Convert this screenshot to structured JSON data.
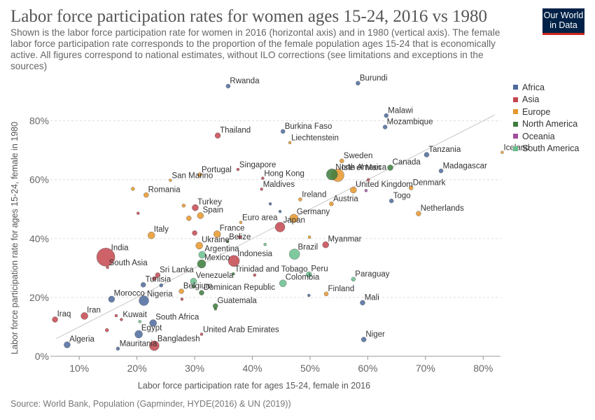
{
  "header": {
    "title": "Labor force participation rates for women ages 15-24, 2016 vs 1980",
    "subtitle": "Shown is the labor force participation rate for women in 2016 (horizontal axis) and in 1980 (vertical axis). The female labor force participation rate corresponds to the proportion of the female population ages 15-24 that is economically active. All figures correspond to national estimates, without ILO corrections (see limitations and exceptions in the sources)",
    "logo_line1": "Our World",
    "logo_line2": "in Data"
  },
  "footer": {
    "source": "Source: World Bank, Population (Gapminder, HYDE(2016) & UN (2019))"
  },
  "colors": {
    "Africa": "#4c6a9c",
    "Asia": "#c4474f",
    "Europe": "#e8962a",
    "North America": "#3c7d3c",
    "Oceania": "#a24d9e",
    "South America": "#67c08c"
  },
  "chart_data": {
    "type": "scatter",
    "xlabel": "Labor force participation rate for ages 15-24, female in 2016",
    "ylabel": "Labor force participation rate for ages 15-24, female in 1980",
    "xlim": [
      5,
      83
    ],
    "ylim": [
      0,
      93
    ],
    "xticks": [
      10,
      20,
      30,
      40,
      50,
      60,
      70,
      80
    ],
    "yticks": [
      0,
      20,
      40,
      60,
      80
    ],
    "tick_suffix": "%",
    "grid": "horizontal",
    "legend_position": "right",
    "legend": [
      "Africa",
      "Asia",
      "Europe",
      "North America",
      "Oceania",
      "South America"
    ],
    "reference_line": [
      [
        6,
        6
      ],
      [
        82,
        82
      ]
    ],
    "points": [
      {
        "label": "Rwanda",
        "region": "Africa",
        "x": 35.8,
        "y": 91.8,
        "size": 3
      },
      {
        "label": "Burundi",
        "region": "Africa",
        "x": 58.3,
        "y": 92.8,
        "size": 3
      },
      {
        "label": "Malawi",
        "region": "Africa",
        "x": 63.2,
        "y": 81.8,
        "size": 3
      },
      {
        "label": "Mozambique",
        "region": "Africa",
        "x": 63.0,
        "y": 77.9,
        "size": 3
      },
      {
        "label": "Thailand",
        "region": "Asia",
        "x": 34.0,
        "y": 75.0,
        "size": 4
      },
      {
        "label": "Burkina Faso",
        "region": "Africa",
        "x": 45.3,
        "y": 76.4,
        "size": 3
      },
      {
        "label": "Liechtenstein",
        "region": "Europe",
        "x": 46.5,
        "y": 72.6,
        "size": 2
      },
      {
        "label": "Tanzania",
        "region": "Africa",
        "x": 70.2,
        "y": 68.5,
        "size": 3.5
      },
      {
        "label": "Iceland",
        "region": "Europe",
        "x": 83.3,
        "y": 69.3,
        "size": 2
      },
      {
        "label": "Sweden",
        "region": "Europe",
        "x": 55.5,
        "y": 66.4,
        "size": 3
      },
      {
        "label": "North America",
        "region": "North America",
        "x": 53.8,
        "y": 61.8,
        "size": 8
      },
      {
        "label": "Isle of Man",
        "region": "Europe",
        "x": 54.8,
        "y": 61.5,
        "size": 9
      },
      {
        "label": "Canada",
        "region": "North America",
        "x": 63.9,
        "y": 64.1,
        "size": 4
      },
      {
        "label": "Madagascar",
        "region": "Africa",
        "x": 72.7,
        "y": 63.0,
        "size": 3
      },
      {
        "label": "Portugal",
        "region": "Europe",
        "x": 30.9,
        "y": 61.7,
        "size": 3
      },
      {
        "label": "Singapore",
        "region": "Asia",
        "x": 37.5,
        "y": 63.5,
        "size": 2
      },
      {
        "label": "Hong Kong",
        "region": "Asia",
        "x": 41.8,
        "y": 60.5,
        "size": 2
      },
      {
        "label": "San Marino",
        "region": "Europe",
        "x": 25.8,
        "y": 59.8,
        "size": 2
      },
      {
        "label": "Maldives",
        "region": "Asia",
        "x": 41.6,
        "y": 56.8,
        "size": 2
      },
      {
        "label": "Romania",
        "region": "Europe",
        "x": 21.6,
        "y": 54.8,
        "size": 3.5
      },
      {
        "label": "United Kingdom",
        "region": "Europe",
        "x": 57.5,
        "y": 56.5,
        "size": 4.5
      },
      {
        "label": "Denmark",
        "region": "Europe",
        "x": 67.5,
        "y": 57.2,
        "size": 3
      },
      {
        "label": "Ireland",
        "region": "Europe",
        "x": 48.3,
        "y": 53.3,
        "size": 2.5
      },
      {
        "label": "Austria",
        "region": "Europe",
        "x": 53.7,
        "y": 51.8,
        "size": 3
      },
      {
        "label": "Togo",
        "region": "Africa",
        "x": 64.1,
        "y": 52.8,
        "size": 3
      },
      {
        "label": "Turkey",
        "region": "Asia",
        "x": 30.1,
        "y": 50.5,
        "size": 4.5
      },
      {
        "label": "Spain",
        "region": "Europe",
        "x": 31.0,
        "y": 47.8,
        "size": 4.5
      },
      {
        "label": "Germany",
        "region": "Europe",
        "x": 47.2,
        "y": 46.9,
        "size": 6
      },
      {
        "label": "Netherlands",
        "region": "Europe",
        "x": 68.8,
        "y": 48.5,
        "size": 3.5
      },
      {
        "label": "Euro area",
        "region": "Europe",
        "x": 38.0,
        "y": 45.5,
        "size": 2
      },
      {
        "label": "Japan",
        "region": "Asia",
        "x": 44.8,
        "y": 43.9,
        "size": 7
      },
      {
        "label": "France",
        "region": "Europe",
        "x": 33.9,
        "y": 41.5,
        "size": 5
      },
      {
        "label": "Italy",
        "region": "Europe",
        "x": 22.5,
        "y": 41.1,
        "size": 5
      },
      {
        "label": "Belize",
        "region": "North America",
        "x": 35.7,
        "y": 39.0,
        "size": 2
      },
      {
        "label": "Ukraine",
        "region": "Europe",
        "x": 30.8,
        "y": 37.6,
        "size": 5
      },
      {
        "label": "Argentina",
        "region": "South America",
        "x": 31.3,
        "y": 34.5,
        "size": 5
      },
      {
        "label": "Myanmar",
        "region": "Asia",
        "x": 52.7,
        "y": 37.9,
        "size": 4.5
      },
      {
        "label": "Brazil",
        "region": "South America",
        "x": 47.3,
        "y": 34.7,
        "size": 7.5
      },
      {
        "label": "India",
        "region": "Asia",
        "x": 14.6,
        "y": 33.7,
        "size": 13
      },
      {
        "label": "Indonesia",
        "region": "Asia",
        "x": 36.8,
        "y": 32.4,
        "size": 8
      },
      {
        "label": "Mexico",
        "region": "North America",
        "x": 31.2,
        "y": 31.4,
        "size": 6
      },
      {
        "label": "South Asia",
        "region": "Asia",
        "x": 14.9,
        "y": 30.2,
        "size": 2
      },
      {
        "label": "Sri Lanka",
        "region": "Asia",
        "x": 23.6,
        "y": 27.6,
        "size": 3.5
      },
      {
        "label": "Trinidad and Tobago",
        "region": "North America",
        "x": 36.7,
        "y": 28.0,
        "size": 2
      },
      {
        "label": "Peru",
        "region": "South America",
        "x": 49.8,
        "y": 27.8,
        "size": 4
      },
      {
        "label": "Paraguay",
        "region": "South America",
        "x": 57.5,
        "y": 26.2,
        "size": 3
      },
      {
        "label": "Venezuela",
        "region": "South America",
        "x": 29.8,
        "y": 25.5,
        "size": 4.5
      },
      {
        "label": "Colombia",
        "region": "South America",
        "x": 45.3,
        "y": 24.8,
        "size": 5
      },
      {
        "label": "Tunisia",
        "region": "Africa",
        "x": 21.1,
        "y": 24.3,
        "size": 3.5
      },
      {
        "label": "Belgium",
        "region": "Europe",
        "x": 27.7,
        "y": 22.1,
        "size": 3.5
      },
      {
        "label": "Dominican Republic",
        "region": "North America",
        "x": 31.2,
        "y": 21.6,
        "size": 3.5
      },
      {
        "label": "Finland",
        "region": "Europe",
        "x": 52.8,
        "y": 21.2,
        "size": 3
      },
      {
        "label": "Morocco",
        "region": "Africa",
        "x": 15.6,
        "y": 19.4,
        "size": 4.5
      },
      {
        "label": "Nigeria",
        "region": "Africa",
        "x": 21.2,
        "y": 18.9,
        "size": 7
      },
      {
        "label": "Guatemala",
        "region": "North America",
        "x": 33.6,
        "y": 17.1,
        "size": 3.5
      },
      {
        "label": "Mali",
        "region": "Africa",
        "x": 59.1,
        "y": 18.2,
        "size": 3.5
      },
      {
        "label": "Iraq",
        "region": "Asia",
        "x": 5.8,
        "y": 12.5,
        "size": 4
      },
      {
        "label": "Iran",
        "region": "Asia",
        "x": 10.9,
        "y": 13.7,
        "size": 5
      },
      {
        "label": "Kuwait",
        "region": "Asia",
        "x": 17.3,
        "y": 12.5,
        "size": 2
      },
      {
        "label": "South Africa",
        "region": "Africa",
        "x": 22.8,
        "y": 11.3,
        "size": 5
      },
      {
        "label": "Egypt",
        "region": "Africa",
        "x": 20.3,
        "y": 7.5,
        "size": 5.5
      },
      {
        "label": "United Arab Emirates",
        "region": "Asia",
        "x": 31.2,
        "y": 7.5,
        "size": 2
      },
      {
        "label": "Algeria",
        "region": "Africa",
        "x": 7.9,
        "y": 3.9,
        "size": 4.5
      },
      {
        "label": "Mauritania",
        "region": "Africa",
        "x": 16.7,
        "y": 2.6,
        "size": 2.5
      },
      {
        "label": "Bangladesh",
        "region": "Asia",
        "x": 23.0,
        "y": 3.6,
        "size": 7
      },
      {
        "label": "Niger",
        "region": "Africa",
        "x": 59.3,
        "y": 5.7,
        "size": 3.5
      }
    ],
    "unlabeled_points": [
      {
        "region": "Europe",
        "x": 19.3,
        "y": 56.9,
        "size": 2.5
      },
      {
        "region": "Europe",
        "x": 28.1,
        "y": 51.2,
        "size": 2.5
      },
      {
        "region": "Europe",
        "x": 29.0,
        "y": 46.9,
        "size": 3.5
      },
      {
        "region": "Asia",
        "x": 30.0,
        "y": 41.9,
        "size": 3.5
      },
      {
        "region": "Asia",
        "x": 20.2,
        "y": 48.6,
        "size": 2
      },
      {
        "region": "Africa",
        "x": 43.1,
        "y": 51.8,
        "size": 2
      },
      {
        "region": "Africa",
        "x": 44.8,
        "y": 49.2,
        "size": 2
      },
      {
        "region": "Oceania",
        "x": 59.7,
        "y": 56.3,
        "size": 2
      },
      {
        "region": "Asia",
        "x": 60.1,
        "y": 60.0,
        "size": 2
      },
      {
        "region": "Asia",
        "x": 40.4,
        "y": 27.6,
        "size": 2
      },
      {
        "region": "Asia",
        "x": 23.0,
        "y": 26.4,
        "size": 3
      },
      {
        "region": "Asia",
        "x": 27.8,
        "y": 19.4,
        "size": 2
      },
      {
        "region": "North America",
        "x": 29.8,
        "y": 23.7,
        "size": 2.5
      },
      {
        "region": "South America",
        "x": 20.5,
        "y": 11.8,
        "size": 2
      },
      {
        "region": "Asia",
        "x": 14.8,
        "y": 8.9,
        "size": 2.5
      },
      {
        "region": "Africa",
        "x": 49.8,
        "y": 20.7,
        "size": 2
      },
      {
        "region": "South America",
        "x": 42.2,
        "y": 38.0,
        "size": 2
      },
      {
        "region": "North America",
        "x": 33.6,
        "y": 16.1,
        "size": 2
      },
      {
        "region": "Africa",
        "x": 24.2,
        "y": 24.1,
        "size": 2.5
      },
      {
        "region": "Asia",
        "x": 37.8,
        "y": 40.5,
        "size": 2.5
      },
      {
        "region": "Europe",
        "x": 49.9,
        "y": 40.5,
        "size": 2
      },
      {
        "region": "Asia",
        "x": 16.4,
        "y": 13.8,
        "size": 2
      }
    ]
  }
}
